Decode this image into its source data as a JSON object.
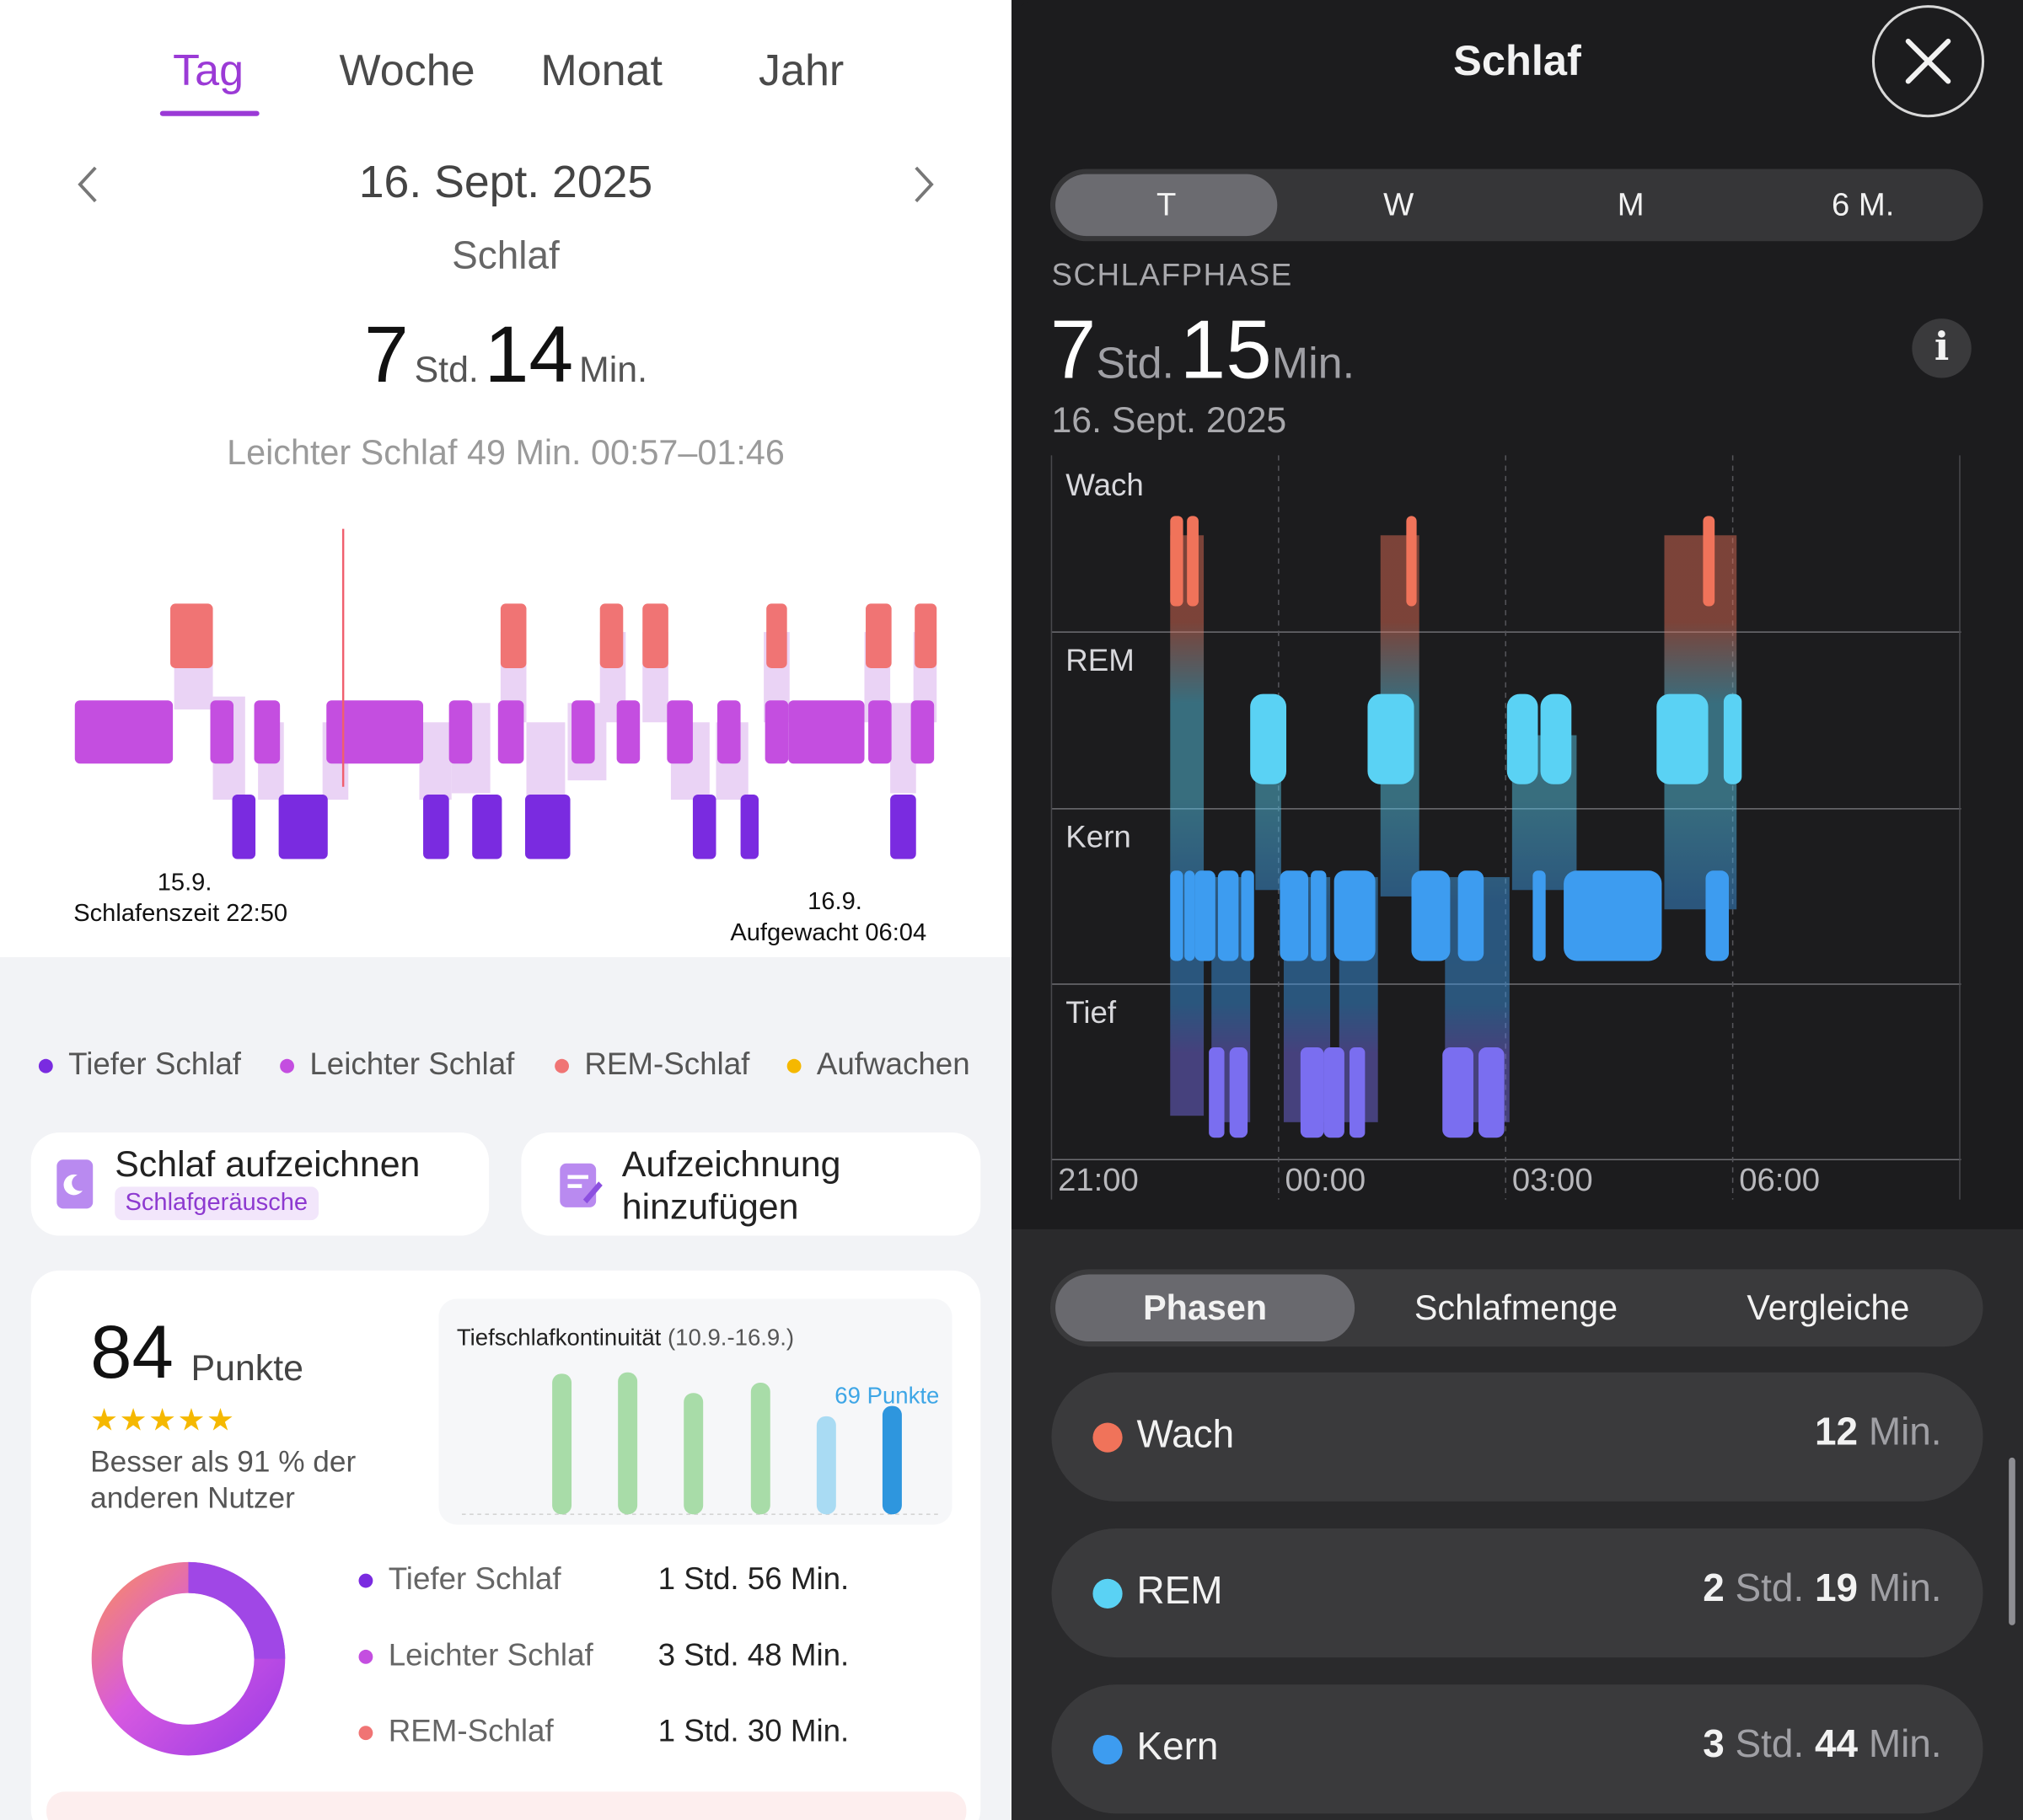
{
  "left": {
    "tabs": [
      "Tag",
      "Woche",
      "Monat",
      "Jahr"
    ],
    "date": "16. Sept. 2025",
    "title": "Schlaf",
    "duration": {
      "hours": "7",
      "hours_unit": "Std.",
      "minutes": "14",
      "minutes_unit": "Min."
    },
    "selection": "Leichter Schlaf 49 Min. 00:57–01:46",
    "start_label": {
      "date": "15.9.",
      "text": "Schlafenszeit 22:50"
    },
    "end_label": {
      "date": "16.9.",
      "text": "Aufgewacht 06:04"
    },
    "legend": [
      {
        "label": "Tiefer Schlaf",
        "color": "#7a2be0"
      },
      {
        "label": "Leichter Schlaf",
        "color": "#c44ee0"
      },
      {
        "label": "REM-Schlaf",
        "color": "#f07474"
      },
      {
        "label": "Aufwachen",
        "color": "#f5b800"
      }
    ],
    "actions": {
      "record": {
        "title": "Schlaf aufzeichnen",
        "badge": "Schlafgeräusche"
      },
      "add": {
        "title_line1": "Aufzeichnung",
        "title_line2": "hinzufügen"
      }
    },
    "score": {
      "value": "84",
      "unit": "Punkte",
      "stars": "★★★★★",
      "stars_value": 4.5,
      "better_than": "Besser als 91 % der anderen Nutzer"
    },
    "deep_continuity": {
      "title": "Tiefschlafkontinuität",
      "range": "(10.9.-16.9.)",
      "points_label": "69 Punkte",
      "bars": [
        0.72,
        0.73,
        0.62,
        0.67,
        0.5,
        0.55
      ]
    },
    "stages": [
      {
        "name": "Tiefer Schlaf",
        "value": "1 Std. 56 Min.",
        "color": "#7a2be0"
      },
      {
        "name": "Leichter Schlaf",
        "value": "3 Std. 48 Min.",
        "color": "#c44ee0"
      },
      {
        "name": "REM-Schlaf",
        "value": "1 Std. 30 Min.",
        "color": "#f07474"
      }
    ]
  },
  "right": {
    "title": "Schlaf",
    "periods": [
      "T",
      "W",
      "M",
      "6 M."
    ],
    "phase_label": "SCHLAFPHASE",
    "duration": {
      "hours": "7",
      "hours_unit": "Std.",
      "minutes": "15",
      "minutes_unit": "Min."
    },
    "date": "16. Sept. 2025",
    "chart": {
      "stages": [
        "Wach",
        "REM",
        "Kern",
        "Tief"
      ],
      "x_labels": [
        "21:00",
        "00:00",
        "03:00",
        "06:00"
      ]
    },
    "views": [
      "Phasen",
      "Schlafmenge",
      "Vergleiche"
    ],
    "stage_cards": [
      {
        "name": "Wach",
        "value_parts": [
          "12",
          " Min."
        ],
        "color": "#f0735a"
      },
      {
        "name": "REM",
        "value_parts": [
          "2",
          " Std. ",
          "19",
          " Min."
        ],
        "color": "#5ad2f4"
      },
      {
        "name": "Kern",
        "value_parts": [
          "3",
          " Std. ",
          "44",
          " Min."
        ],
        "color": "#3d9cf0"
      }
    ]
  }
}
